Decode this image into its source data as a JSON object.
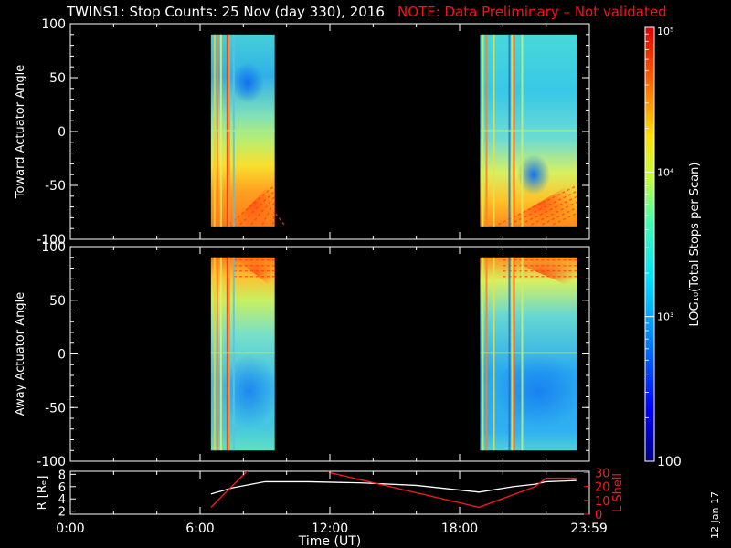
{
  "title": {
    "main": "TWINS1: Stop Counts: 25 Nov (day 330), 2016",
    "note": "NOTE: Data Preliminary – Not validated"
  },
  "stamp": "12 Jan 17",
  "colors": {
    "background": "#000000",
    "axes": "#ffffff",
    "note": "#ff1010",
    "lshell": "#ff1a1a",
    "radius": "#ffffff"
  },
  "chart_data": [
    {
      "type": "heatmap",
      "panel": "top",
      "ylabel": "Toward Actuator Angle",
      "ylim": [
        -100,
        100
      ],
      "yticks": [
        "100",
        "50",
        "0",
        "-50",
        "-100"
      ],
      "xlim_hours": [
        0,
        24
      ],
      "data_intervals_hours": [
        [
          6.5,
          9.45
        ],
        [
          18.95,
          23.45
        ]
      ],
      "y_range": [
        -88,
        90
      ]
    },
    {
      "type": "heatmap",
      "panel": "middle",
      "ylabel": "Away Actuator Angle",
      "ylim": [
        -100,
        100
      ],
      "yticks": [
        "100",
        "50",
        "0",
        "-50",
        "-100"
      ],
      "xlim_hours": [
        0,
        24
      ],
      "data_intervals_hours": [
        [
          6.5,
          9.45
        ],
        [
          18.95,
          23.45
        ]
      ],
      "y_range": [
        -90,
        90
      ]
    },
    {
      "type": "line",
      "panel": "bottom",
      "ylabel_left": "R [Rₑ]",
      "ylabel_right": "L Shell",
      "yticks_left": [
        "8",
        "6",
        "4",
        "2"
      ],
      "yticks_right": [
        "30",
        "20",
        "10",
        "0"
      ],
      "ylim_left": [
        1.5,
        8.5
      ],
      "ylim_right": [
        0,
        31
      ],
      "xlabel": "Time (UT)",
      "xticks": [
        "0:00",
        "6:00",
        "12:00",
        "18:00",
        "23:59"
      ],
      "series": [
        {
          "x": [
            6.5,
            7.5,
            9.0,
            11.0,
            13.5,
            16.0,
            18.9,
            20.5,
            21.5,
            22.0,
            22.8,
            23.4
          ],
          "y": [
            4.8,
            5.8,
            6.8,
            6.8,
            6.6,
            6.2,
            5.1,
            6.0,
            6.4,
            6.8,
            6.9,
            7.0
          ]
        },
        {
          "x": [
            6.5,
            8.1,
            8.2,
            11.9,
            12.0,
            18.9,
            21.5,
            22.0,
            23.4
          ],
          "y": [
            5,
            30,
            32,
            32,
            30,
            5,
            20,
            26,
            26
          ]
        }
      ]
    },
    {
      "type": "colorbar",
      "label": "LOG₁₀(Total Stops per Scan)",
      "ticks": [
        "10⁵",
        "10⁴",
        "10³",
        "100"
      ],
      "range_log": [
        2,
        5
      ]
    }
  ]
}
